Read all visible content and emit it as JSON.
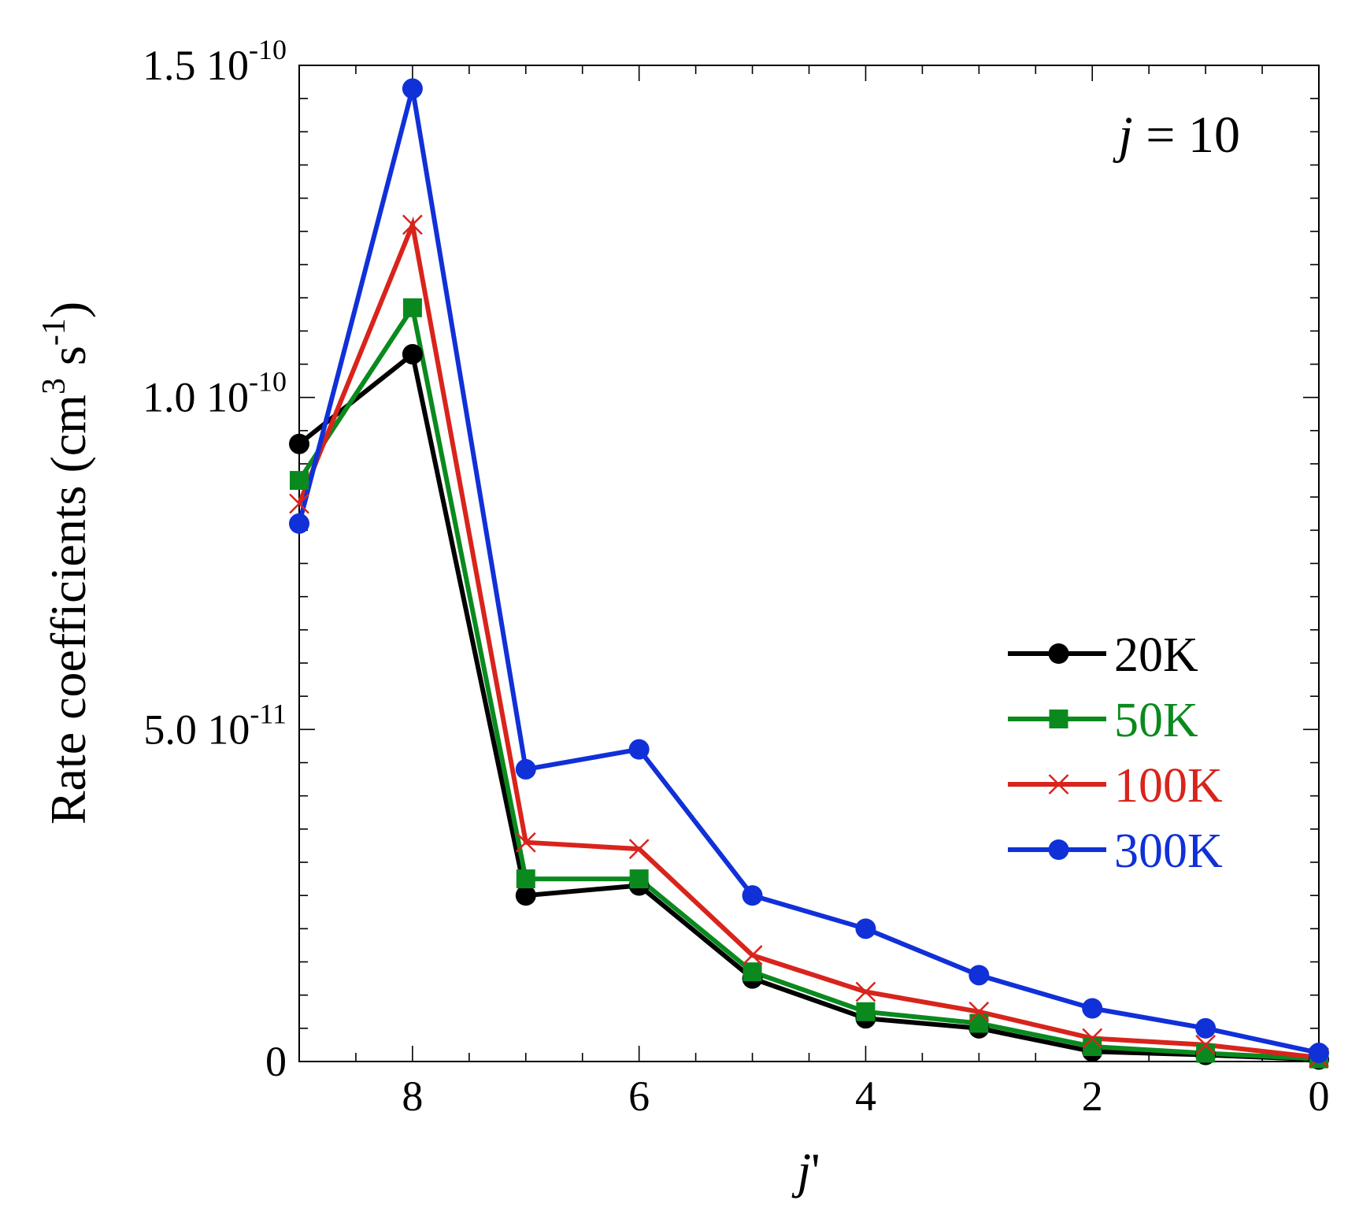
{
  "chart_data": {
    "type": "line",
    "title": "",
    "annotation": {
      "var": "j",
      "eq": " = 10"
    },
    "xlabel": {
      "main": "j",
      "prime": "'"
    },
    "ylabel": {
      "text": "Rate coefficients (cm",
      "sup1": "3",
      "mid": " s",
      "sup2": "-1",
      "end": ")"
    },
    "xlim": [
      9,
      0
    ],
    "ylim": [
      0,
      1.5e-10
    ],
    "grid": false,
    "legend_position": "right",
    "x_ticks": [
      "8",
      "6",
      "4",
      "2",
      "0"
    ],
    "x_tick_values": [
      8,
      6,
      4,
      2,
      0
    ],
    "y_ticks": [
      {
        "value": 0,
        "mantissa": "0",
        "exp": ""
      },
      {
        "value": 5e-11,
        "mantissa": "5.0 10",
        "exp": "-11"
      },
      {
        "value": 1e-10,
        "mantissa": "1.0 10",
        "exp": "-10"
      },
      {
        "value": 1.5e-10,
        "mantissa": "1.5 10",
        "exp": "-10"
      }
    ],
    "x": [
      9,
      8,
      7,
      6,
      5,
      4,
      3,
      2,
      1,
      0
    ],
    "series": [
      {
        "name": "20K",
        "color": "#000000",
        "marker": "circle",
        "values": [
          9.3e-11,
          1.065e-10,
          2.5e-11,
          2.65e-11,
          1.25e-11,
          6.5e-12,
          5e-12,
          1.5e-12,
          1e-12,
          3e-13
        ]
      },
      {
        "name": "50K",
        "color": "#0a8a1e",
        "marker": "square",
        "values": [
          8.75e-11,
          1.135e-10,
          2.75e-11,
          2.75e-11,
          1.35e-11,
          7.5e-12,
          5.75e-12,
          2.25e-12,
          1.25e-12,
          4e-13
        ]
      },
      {
        "name": "100K",
        "color": "#d8241c",
        "marker": "x",
        "values": [
          8.4e-11,
          1.26e-10,
          3.3e-11,
          3.2e-11,
          1.6e-11,
          1.05e-11,
          7.5e-12,
          3.5e-12,
          2.5e-12,
          6e-13
        ]
      },
      {
        "name": "300K",
        "color": "#1030d8",
        "marker": "circle",
        "values": [
          8.1e-11,
          1.465e-10,
          4.4e-11,
          4.7e-11,
          2.5e-11,
          2e-11,
          1.3e-11,
          8e-12,
          5e-12,
          1.3e-12
        ]
      }
    ]
  }
}
